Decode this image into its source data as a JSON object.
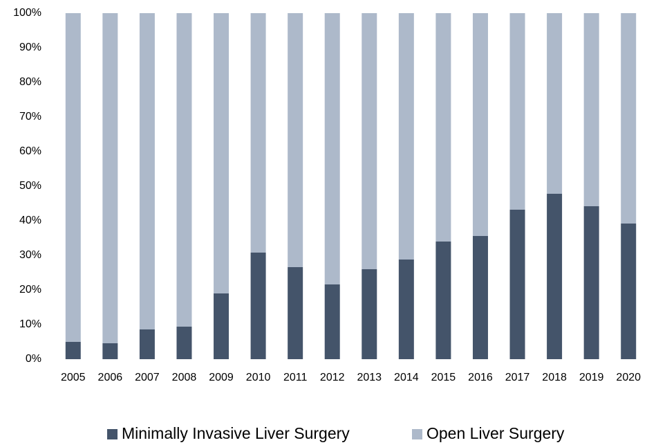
{
  "chart_data": {
    "type": "stacked_bar",
    "categories": [
      "2005",
      "2006",
      "2007",
      "2008",
      "2009",
      "2010",
      "2011",
      "2012",
      "2013",
      "2014",
      "2015",
      "2016",
      "2017",
      "2018",
      "2019",
      "2020"
    ],
    "series": [
      {
        "name": "Minimally Invasive Liver Surgery",
        "color": "#44546a",
        "values": [
          5,
          4.6,
          8.6,
          9.4,
          19,
          30.8,
          26.6,
          21.6,
          26,
          28.8,
          34,
          35.6,
          43.2,
          47.8,
          44.2,
          39.2
        ]
      },
      {
        "name": "Open Liver Surgery",
        "color": "#adb9ca",
        "values": [
          95,
          95.4,
          91.4,
          90.6,
          81,
          69.2,
          73.4,
          78.4,
          74,
          71.2,
          66,
          64.4,
          56.8,
          52.2,
          55.8,
          60.8
        ]
      }
    ],
    "ylim": [
      0,
      100
    ],
    "yticks": [
      {
        "value": 0,
        "label": "0%"
      },
      {
        "value": 10,
        "label": "10%"
      },
      {
        "value": 20,
        "label": "20%"
      },
      {
        "value": 30,
        "label": "30%"
      },
      {
        "value": 40,
        "label": "40%"
      },
      {
        "value": 50,
        "label": "50%"
      },
      {
        "value": 60,
        "label": "60%"
      },
      {
        "value": 70,
        "label": "70%"
      },
      {
        "value": 80,
        "label": "80%"
      },
      {
        "value": 90,
        "label": "90%"
      },
      {
        "value": 100,
        "label": "100%"
      }
    ],
    "legend": "bottom",
    "grid": false
  }
}
